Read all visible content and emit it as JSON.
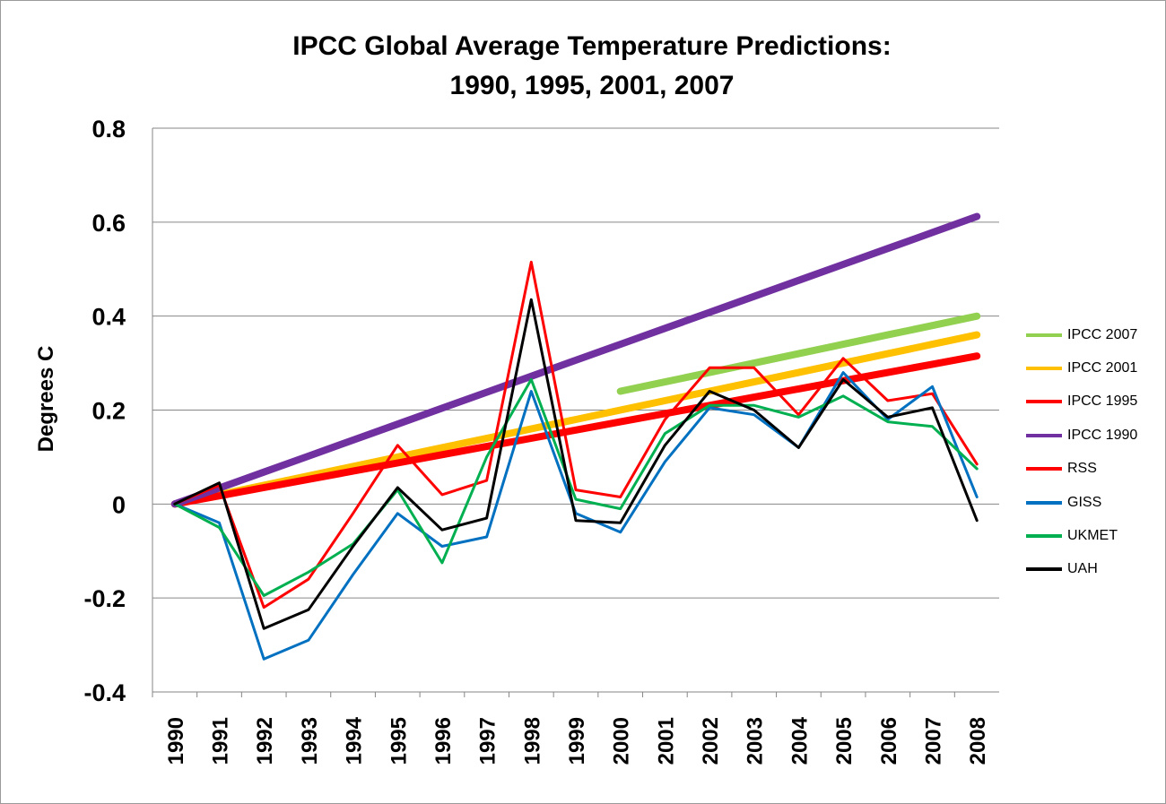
{
  "chart_data": {
    "type": "line",
    "title_lines": [
      "IPCC Global Average Temperature Predictions:",
      "1990, 1995, 2001, 2007"
    ],
    "xlabel": "",
    "ylabel": "Degrees C",
    "ylim": [
      -0.4,
      0.8
    ],
    "yticks": [
      "0.8",
      "0.6",
      "0.4",
      "0.2",
      "0",
      "-0.2",
      "-0.4"
    ],
    "ytick_values": [
      0.8,
      0.6,
      0.4,
      0.2,
      0,
      -0.2,
      -0.4
    ],
    "grid": true,
    "legend_position": "right",
    "x": [
      "1990",
      "1991",
      "1992",
      "1993",
      "1994",
      "1995",
      "1996",
      "1997",
      "1998",
      "1999",
      "2000",
      "2001",
      "2002",
      "2003",
      "2004",
      "2005",
      "2006",
      "2007",
      "2008"
    ],
    "series": [
      {
        "name": "IPCC 2007",
        "color": "#92d050",
        "style": "thick",
        "values": [
          null,
          null,
          null,
          null,
          null,
          null,
          null,
          null,
          null,
          null,
          0.24,
          0.26,
          0.28,
          0.3,
          0.32,
          0.34,
          0.36,
          0.38,
          0.4
        ]
      },
      {
        "name": "IPCC 2001",
        "color": "#ffc000",
        "style": "thick",
        "values": [
          0,
          0.02,
          0.04,
          0.06,
          0.08,
          0.1,
          0.12,
          0.14,
          0.16,
          0.18,
          0.2,
          0.22,
          0.24,
          0.26,
          0.28,
          0.3,
          0.32,
          0.34,
          0.36
        ]
      },
      {
        "name": "IPCC 1995",
        "color": "#ff0000",
        "style": "thick",
        "values": [
          0,
          0.0175,
          0.035,
          0.0525,
          0.07,
          0.0875,
          0.105,
          0.1225,
          0.14,
          0.1575,
          0.175,
          0.1925,
          0.21,
          0.2275,
          0.245,
          0.2625,
          0.28,
          0.2975,
          0.315
        ]
      },
      {
        "name": "IPCC 1990",
        "color": "#7030a0",
        "style": "thick",
        "values": [
          0,
          0.034,
          0.068,
          0.102,
          0.136,
          0.17,
          0.204,
          0.238,
          0.272,
          0.306,
          0.34,
          0.374,
          0.408,
          0.442,
          0.476,
          0.51,
          0.544,
          0.578,
          0.612
        ]
      },
      {
        "name": "RSS",
        "color": "#ff0000",
        "style": "thin",
        "values": [
          0,
          0.04,
          -0.22,
          -0.16,
          -0.02,
          0.125,
          0.02,
          0.05,
          0.515,
          0.03,
          0.015,
          0.18,
          0.29,
          0.29,
          0.19,
          0.31,
          0.22,
          0.235,
          0.085
        ]
      },
      {
        "name": "GISS",
        "color": "#0070c0",
        "style": "thin",
        "values": [
          0,
          -0.04,
          -0.33,
          -0.29,
          -0.15,
          -0.02,
          -0.09,
          -0.07,
          0.24,
          -0.02,
          -0.06,
          0.09,
          0.205,
          0.19,
          0.12,
          0.28,
          0.18,
          0.25,
          0.015
        ]
      },
      {
        "name": "UKMET",
        "color": "#00b050",
        "style": "thin",
        "values": [
          0,
          -0.05,
          -0.195,
          -0.145,
          -0.085,
          0.03,
          -0.125,
          0.1,
          0.265,
          0.01,
          -0.01,
          0.15,
          0.21,
          0.21,
          0.185,
          0.23,
          0.175,
          0.165,
          0.075
        ]
      },
      {
        "name": "UAH",
        "color": "#000000",
        "style": "thin",
        "values": [
          0,
          0.045,
          -0.265,
          -0.225,
          -0.09,
          0.035,
          -0.055,
          -0.03,
          0.435,
          -0.035,
          -0.04,
          0.125,
          0.24,
          0.2,
          0.12,
          0.265,
          0.185,
          0.205,
          -0.035
        ]
      }
    ]
  }
}
